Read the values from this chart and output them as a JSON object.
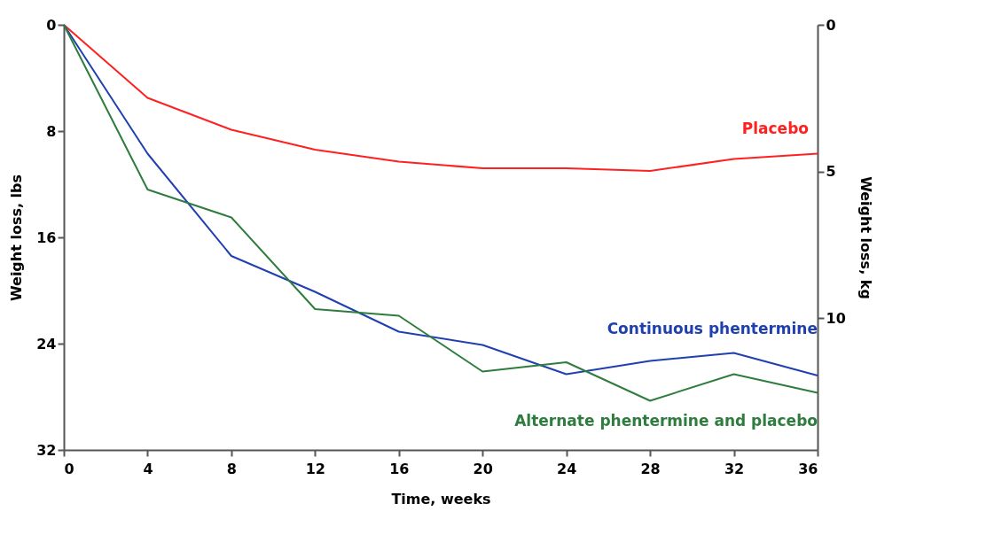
{
  "chart_data": {
    "type": "line",
    "xlabel": "Time, weeks",
    "ylabel": "Weight loss, lbs",
    "y2label": "Weight loss, kg",
    "x": [
      0,
      4,
      8,
      12,
      16,
      20,
      24,
      28,
      32,
      36
    ],
    "xlim": [
      0,
      36
    ],
    "xticks": [
      0,
      4,
      8,
      12,
      16,
      20,
      24,
      28,
      32,
      36
    ],
    "ylim": [
      32,
      0
    ],
    "yticks": [
      0,
      8,
      16,
      24,
      32
    ],
    "y2lim": [
      14.5,
      0
    ],
    "y2ticks": [
      0,
      5,
      10
    ],
    "grid": false,
    "legend": false,
    "marker": "none",
    "line_style": "solid",
    "series": [
      {
        "name": "Placebo",
        "color": "#ff2020",
        "values": [
          0,
          5.5,
          7.9,
          9.4,
          10.3,
          10.8,
          10.8,
          11.0,
          10.1,
          9.7
        ]
      },
      {
        "name": "Continuous phentermine",
        "color": "#2040b0",
        "values": [
          0,
          9.7,
          17.4,
          20.1,
          23.1,
          24.1,
          26.3,
          25.3,
          24.7,
          26.4
        ]
      },
      {
        "name": "Alternate phentermine and placebo",
        "color": "#2e7d3e",
        "values": [
          0,
          12.4,
          14.5,
          21.4,
          21.9,
          26.1,
          25.4,
          28.3,
          26.3,
          27.7
        ]
      }
    ]
  }
}
